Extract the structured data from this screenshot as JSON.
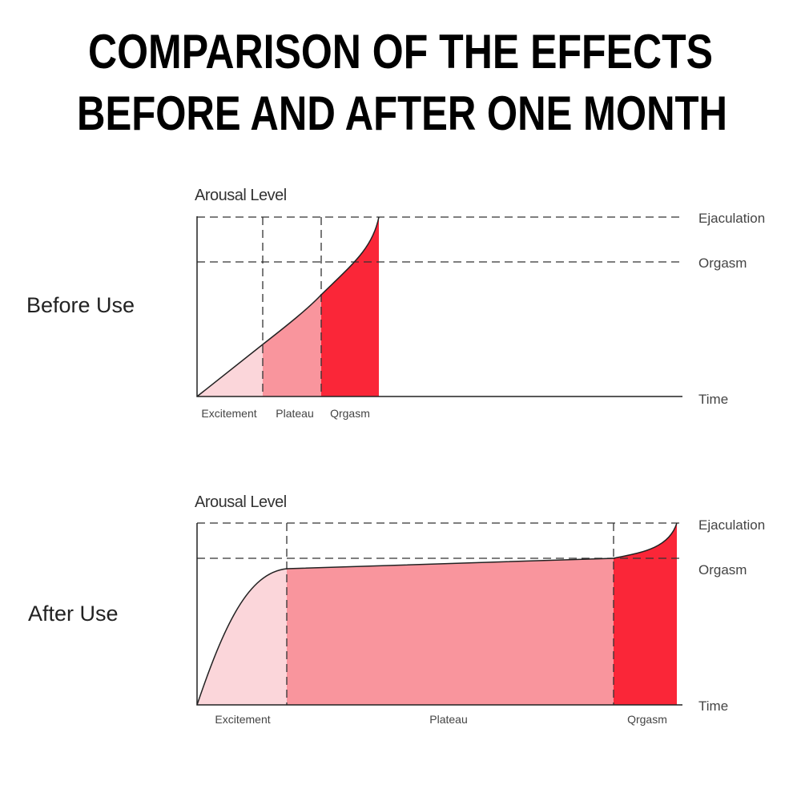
{
  "header": {
    "title_lines": [
      "COMPARISON OF THE EFFECTS",
      "BEFORE AND AFTER ONE MONTH"
    ]
  },
  "panels": [
    {
      "label": "Before Use",
      "y_axis": "Arousal Level",
      "x_axis": "Time",
      "levels": [
        "Ejaculation",
        "Orgasm"
      ],
      "phases": [
        "Excitement",
        "Plateau",
        "Qrgasm"
      ]
    },
    {
      "label": "After Use",
      "y_axis": "Arousal Level",
      "x_axis": "Time",
      "levels": [
        "Ejaculation",
        "Orgasm"
      ],
      "phases": [
        "Excitement",
        "Plateau",
        "Qrgasm"
      ]
    }
  ]
}
